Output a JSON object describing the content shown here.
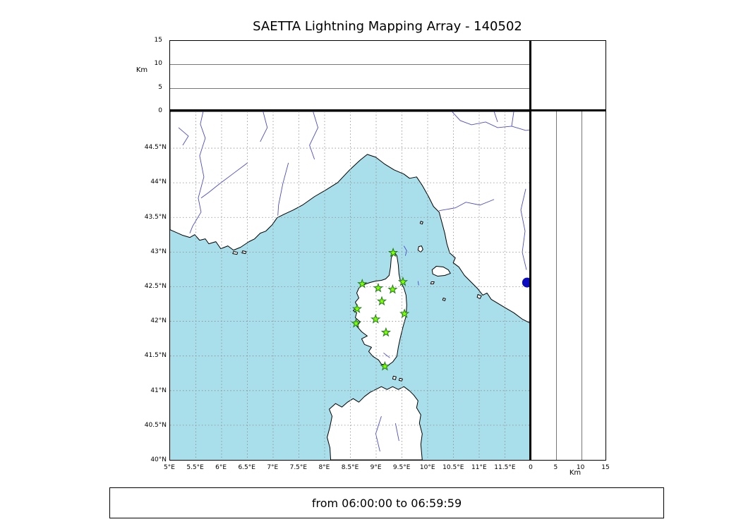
{
  "title": "SAETTA Lightning Mapping Array - 140502",
  "footer": "from 06:00:00 to 06:59:59",
  "alt_axis": {
    "label": "Km",
    "max": 15,
    "ticks": [
      "0",
      "5",
      "10",
      "15"
    ],
    "grid": [
      5,
      10
    ]
  },
  "map": {
    "lon_min": 5,
    "lon_max": 12,
    "lat_min": 40,
    "lat_max": 45.03,
    "lon_ticks": [
      {
        "value": 5,
        "label": "5°E"
      },
      {
        "value": 5.5,
        "label": "5.5°E"
      },
      {
        "value": 6,
        "label": "6°E"
      },
      {
        "value": 6.5,
        "label": "6.5°E"
      },
      {
        "value": 7,
        "label": "7°E"
      },
      {
        "value": 7.5,
        "label": "7.5°E"
      },
      {
        "value": 8,
        "label": "8°E"
      },
      {
        "value": 8.5,
        "label": "8.5°E"
      },
      {
        "value": 9,
        "label": "9°E"
      },
      {
        "value": 9.5,
        "label": "9.5°E"
      },
      {
        "value": 10,
        "label": "10°E"
      },
      {
        "value": 10.5,
        "label": "10.5°E"
      },
      {
        "value": 11,
        "label": "11°E"
      },
      {
        "value": 11.5,
        "label": "11.5°E"
      }
    ],
    "lat_ticks": [
      {
        "value": 40,
        "label": "40°N"
      },
      {
        "value": 40.5,
        "label": "40.5°N"
      },
      {
        "value": 41,
        "label": "41°N"
      },
      {
        "value": 41.5,
        "label": "41.5°N"
      },
      {
        "value": 42,
        "label": "42°N"
      },
      {
        "value": 42.5,
        "label": "42.5°N"
      },
      {
        "value": 43,
        "label": "43°N"
      },
      {
        "value": 43.5,
        "label": "43.5°N"
      },
      {
        "value": 44,
        "label": "44°N"
      },
      {
        "value": 44.5,
        "label": "44.5°N"
      }
    ],
    "colors": {
      "sea": "#a9dfeb",
      "land": "#ffffff",
      "coast": "#000000",
      "river": "#4c4cc8",
      "grid": "#8a8a8a"
    },
    "geometry": {
      "land": [
        "M 0,168 L 18,176 L 28,179 L 35,175 L 42,183 L 50,181 L 55,188 L 65,185 L 72,195 L 82,191 L 90,197 L 100,193 L 112,185 L 120,181 L 128,173 L 136,170 L 145,161 L 152,151 L 162,146 L 175,140 L 188,133 L 205,121 L 222,111 L 238,101 L 255,83 L 270,69 L 280,61 L 292,65 L 305,75 L 318,83 L 332,89 L 340,95 L 350,93 L 358,105 L 367,121 L 374,135 L 382,143 L 386,158 L 390,173 L 393,188 L 397,201 L 405,208 L 402,215 L 410,221 L 418,233 L 428,243 L 436,251 L 444,261 L 450,258 L 456,267 L 466,273 L 476,279 L 488,286 L 500,295 L 512,301 L 512,0 L 0,0 Z",
        "M 318,200 L 322,205 L 324,218 L 325,231 L 327,241 L 332,251 L 335,261 L 336,275 L 335,291 L 331,305 L 327,321 L 324,335 L 322,348 L 316,356 L 309,361 L 300,359 L 296,353 L 288,348 L 282,341 L 286,335 L 276,331 L 272,323 L 280,319 L 272,313 L 265,305 L 270,299 L 263,293 L 265,286 L 260,283 L 266,277 L 263,271 L 268,265 L 265,258 L 268,251 L 273,247 L 278,245 L 284,243 L 292,241 L 300,240 L 306,238 L 311,233 L 313,221 L 314,208 Z",
        "M 228,495 L 227,478 L 223,463 L 227,448 L 230,433 L 226,423 L 235,415 L 244,420 L 252,413 L 260,408 L 268,413 L 276,405 L 284,399 L 292,395 L 300,391 L 308,395 L 316,391 L 324,395 L 332,391 L 340,397 L 346,403 L 352,411 L 350,421 L 356,431 L 354,443 L 358,458 L 356,473 L 358,495 Z",
        "M 372,225 L 378,220 L 388,221 L 395,225 L 398,230 L 390,233 L 380,234 L 373,231 Z",
        "M 353,192 L 357,191 L 359,196 L 356,200 L 352,197 Z",
        "M 356,156 L 359,157 L 358,160 L 355,159 Z",
        "M 371,242 L 375,242 L 374,245 L 370,245 Z",
        "M 388,265 L 391,266 L 390,269 L 387,268 Z",
        "M 437,260 L 442,262 L 440,266 L 436,264 Z",
        "M 317,376 L 321,377 L 320,381 L 316,380 Z",
        "M 326,379 L 330,380 L 329,383 L 325,382 Z",
        "M 90,199 L 96,200 L 95,203 L 89,202 Z",
        "M 103,198 L 108,199 L 107,202 L 102,201 Z"
      ],
      "rivers": [
        "47,0 43,18 50,38 42,63 48,93 40,123 44,143 32,163 28,173",
        "110,73 90,88 70,103 55,115 44,123",
        "168,73 160,103 154,133 153,148",
        "203,0 210,23 198,48 205,68",
        "132,0 138,23 128,43",
        "12,23 26,35 18,48",
        "400,0 412,13 428,19 448,15 465,23 485,21 505,27 512,26",
        "460,0 465,15",
        "488,0 485,21",
        "460,125 440,133 420,129 405,137 382,141",
        "505,110 498,140 504,170 500,200 506,225",
        "303,343 312,350",
        "300,433 292,458 298,483",
        "320,443 325,468",
        "332,191 336,198 334,205",
        "352,241 353,247"
      ]
    }
  },
  "chart_data": {
    "type": "scatter",
    "title": "SAETTA Lightning Mapping Array - 140502",
    "time_range": "from 06:00:00 to 06:59:59",
    "panels": [
      {
        "id": "altitude-vs-longitude",
        "position": "top",
        "ylabel": "Km",
        "ylim": [
          0,
          15
        ],
        "yticks": [
          0,
          5,
          10,
          15
        ],
        "grid": [
          5,
          10
        ],
        "points": []
      },
      {
        "id": "map",
        "position": "center",
        "xlim_deg_east": [
          5,
          12
        ],
        "ylim_deg_north": [
          40,
          45.03
        ],
        "xtick_step": 0.5,
        "ytick_step": 0.5,
        "grid": "dashed"
      },
      {
        "id": "altitude-vs-latitude",
        "position": "right",
        "xlabel": "Km",
        "xlim": [
          0,
          15
        ],
        "xticks": [
          0,
          5,
          10,
          15
        ],
        "grid": [
          5,
          10
        ],
        "points": []
      }
    ],
    "stations": {
      "name": "LMA station",
      "marker": "star",
      "color": "#7fff00",
      "edge_color": "#1f7a1f",
      "points_lon_lat": [
        [
          9.33,
          42.99
        ],
        [
          8.73,
          42.54
        ],
        [
          9.04,
          42.48
        ],
        [
          9.32,
          42.46
        ],
        [
          9.52,
          42.57
        ],
        [
          9.11,
          42.29
        ],
        [
          8.63,
          42.18
        ],
        [
          9.55,
          42.11
        ],
        [
          8.61,
          41.97
        ],
        [
          8.99,
          42.03
        ],
        [
          9.19,
          41.84
        ],
        [
          9.17,
          41.35
        ]
      ]
    },
    "detection": {
      "name": "source point",
      "marker": "circle",
      "color": "#0b0bc0",
      "lon": 11.93,
      "lat": 42.56
    }
  }
}
